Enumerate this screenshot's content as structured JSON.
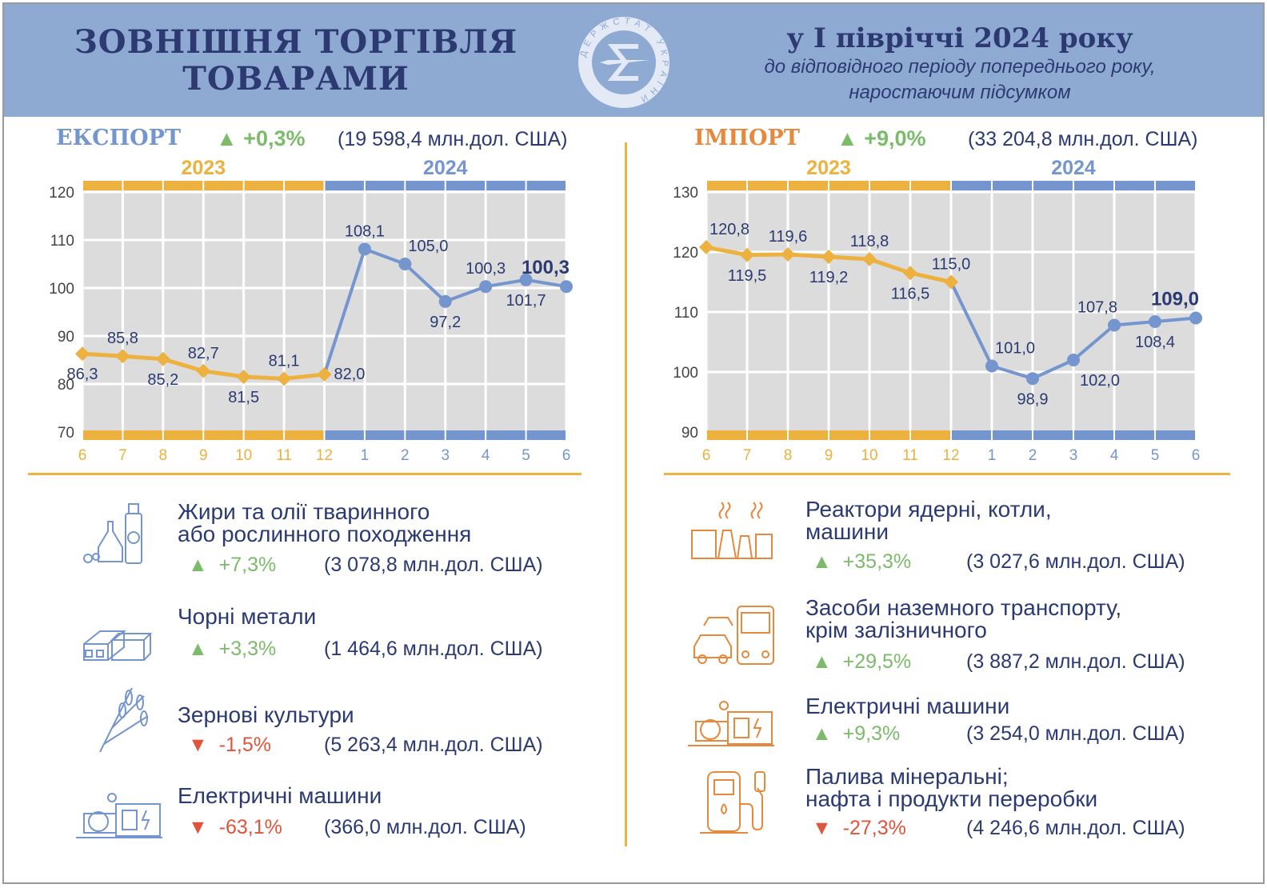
{
  "header": {
    "title_line1": "ЗОВНІШНЯ ТОРГІВЛЯ",
    "title_line2": "ТОВАРАМИ",
    "period": "у І півріччі 2024 року",
    "note_line1": "до відповідного періоду попереднього року,",
    "note_line2": "наростаючим підсумком",
    "logo_text": "ДЕРЖСТАТ УКРАЇНИ",
    "logo_symbol": "Є"
  },
  "colors": {
    "y2023": "#ecb13f",
    "y2024": "#7595cf",
    "navy": "#2b3a73",
    "up": "#7cbb6a",
    "down": "#e0553a",
    "export_title": "#7595cf",
    "import_title": "#e6893c"
  },
  "export": {
    "title": "ЕКСПОРТ",
    "change": "▲ +0,3%",
    "total": "(19 598,4 млн.дол. США)"
  },
  "import": {
    "title": "ІМПОРТ",
    "change": "▲ +9,0%",
    "total": "(33 204,8 млн.дол. США)"
  },
  "chart_data": [
    {
      "type": "line",
      "title": "ЕКСПОРТ",
      "years": [
        "2023",
        "2024"
      ],
      "categories": [
        "6",
        "7",
        "8",
        "9",
        "10",
        "11",
        "12",
        "1",
        "2",
        "3",
        "4",
        "5",
        "6"
      ],
      "values": [
        86.3,
        85.8,
        85.2,
        82.7,
        81.5,
        81.1,
        82.0,
        108.1,
        105.0,
        97.2,
        100.3,
        101.7,
        100.3
      ],
      "labels": [
        "86,3",
        "85,8",
        "85,2",
        "82,7",
        "81,5",
        "81,1",
        "82,0",
        "108,1",
        "105,0",
        "97,2",
        "100,3",
        "101,7",
        "100,3"
      ],
      "yticks": [
        "70",
        "80",
        "90",
        "100",
        "110",
        "120"
      ],
      "ylim": [
        70,
        120
      ],
      "grid": true
    },
    {
      "type": "line",
      "title": "ІМПОРТ",
      "years": [
        "2023",
        "2024"
      ],
      "categories": [
        "6",
        "7",
        "8",
        "9",
        "10",
        "11",
        "12",
        "1",
        "2",
        "3",
        "4",
        "5",
        "6"
      ],
      "values": [
        120.8,
        119.5,
        119.6,
        119.2,
        118.8,
        116.5,
        115.0,
        101.0,
        98.9,
        102.0,
        107.8,
        108.4,
        109.0
      ],
      "labels": [
        "120,8",
        "119,5",
        "119,6",
        "119,2",
        "118,8",
        "116,5",
        "115,0",
        "101,0",
        "98,9",
        "102,0",
        "107,8",
        "108,4",
        "109,0"
      ],
      "yticks": [
        "90",
        "100",
        "110",
        "120",
        "130"
      ],
      "ylim": [
        90,
        130
      ],
      "grid": true
    }
  ],
  "export_items": [
    {
      "icon": "oil-bottles-icon",
      "name1": "Жири та олії тваринного",
      "name2": "або рослинного походження",
      "dir": "up",
      "change": "+7,3%",
      "value": "(3 078,8 млн.дол. США)"
    },
    {
      "icon": "metal-beams-icon",
      "name1": "Чорні метали",
      "name2": "",
      "dir": "up",
      "change": "+3,3%",
      "value": "(1 464,6 млн.дол. США)"
    },
    {
      "icon": "wheat-icon",
      "name1": "Зернові культури",
      "name2": "",
      "dir": "down",
      "change": "-1,5%",
      "value": "(5 263,4 млн.дол. США)"
    },
    {
      "icon": "electric-machine-icon",
      "name1": "Електричні машини",
      "name2": "",
      "dir": "down",
      "change": "-63,1%",
      "value": "(366,0 млн.дол. США)"
    }
  ],
  "import_items": [
    {
      "icon": "reactor-icon",
      "name1": "Реактори ядерні, котли,",
      "name2": "машини",
      "dir": "up",
      "change": "+35,3%",
      "value": "(3 027,6 млн.дол. США)"
    },
    {
      "icon": "vehicles-icon",
      "name1": "Засоби наземного транспорту,",
      "name2": "крім залізничного",
      "dir": "up",
      "change": "+29,5%",
      "value": "(3 887,2 млн.дол. США)"
    },
    {
      "icon": "electric-machine-icon",
      "name1": "Електричні машини",
      "name2": "",
      "dir": "up",
      "change": "+9,3%",
      "value": "(3 254,0 млн.дол. США)"
    },
    {
      "icon": "fuel-pump-icon",
      "name1": "Палива мінеральні;",
      "name2": "нафта і продукти переробки",
      "dir": "down",
      "change": "-27,3%",
      "value": "(4 246,6 млн.дол. США)"
    }
  ]
}
